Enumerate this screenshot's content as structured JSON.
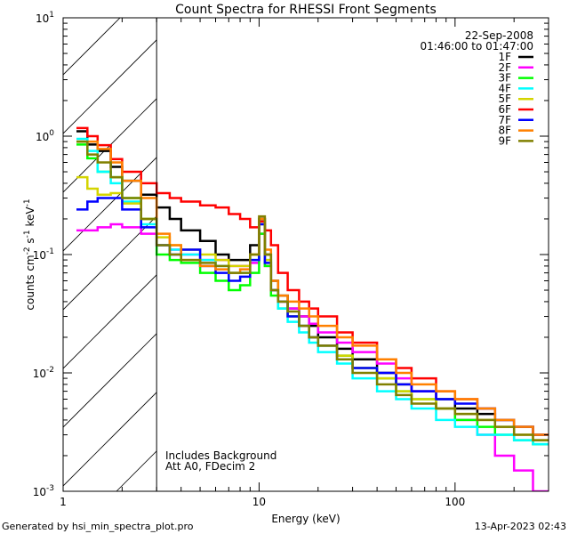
{
  "chart_data": {
    "type": "line",
    "title": "Count Spectra for RHESSI Front Segments",
    "xlabel": "Energy (keV)",
    "ylabel_parts": {
      "base": "counts cm",
      "exp1": "-2",
      "mid": " s",
      "exp2": "-1",
      "unit": " keV",
      "exp3": "-1"
    },
    "xscale": "log",
    "yscale": "log",
    "xlim": [
      1,
      300
    ],
    "ylim": [
      0.001,
      10
    ],
    "x_ticks": [
      {
        "value": 1,
        "label": "1"
      },
      {
        "value": 10,
        "label": "10"
      },
      {
        "value": 100,
        "label": "100"
      }
    ],
    "y_ticks": [
      {
        "value": 0.001,
        "base": "10",
        "exp": "-3"
      },
      {
        "value": 0.01,
        "base": "10",
        "exp": "-2"
      },
      {
        "value": 0.1,
        "base": "10",
        "exp": "-1"
      },
      {
        "value": 1,
        "base": "10",
        "exp": "0"
      },
      {
        "value": 10,
        "base": "10",
        "exp": "1"
      }
    ],
    "date": "22-Sep-2008",
    "time_range": "01:46:00 to 01:47:00",
    "shaded_region_keV": [
      1,
      3
    ],
    "annotations": [
      "Includes Background",
      "Att A0, FDecim 2"
    ],
    "legend_position": "top-right",
    "energy_edges": [
      1.17,
      1.33,
      1.5,
      1.75,
      2.0,
      2.5,
      3.0,
      3.5,
      4,
      5,
      6,
      7,
      8,
      9,
      10,
      10.7,
      11.5,
      12.5,
      14,
      16,
      18,
      20,
      25,
      30,
      40,
      50,
      60,
      80,
      100,
      130,
      160,
      200,
      250,
      300
    ],
    "series": [
      {
        "name": "1F",
        "color": "#000000",
        "values": [
          1.1,
          0.85,
          0.75,
          0.55,
          0.42,
          0.32,
          0.25,
          0.2,
          0.16,
          0.13,
          0.1,
          0.09,
          0.09,
          0.12,
          0.2,
          0.1,
          0.06,
          0.045,
          0.035,
          0.03,
          0.025,
          0.02,
          0.016,
          0.013,
          0.01,
          0.008,
          0.007,
          0.006,
          0.005,
          0.0045,
          0.004,
          0.0035,
          0.003
        ]
      },
      {
        "name": "2F",
        "color": "#ff00ff",
        "values": [
          0.16,
          0.16,
          0.17,
          0.18,
          0.17,
          0.15,
          0.12,
          0.11,
          0.1,
          0.09,
          0.09,
          0.08,
          0.08,
          0.085,
          0.15,
          0.08,
          0.05,
          0.04,
          0.035,
          0.03,
          0.026,
          0.022,
          0.018,
          0.015,
          0.012,
          0.009,
          0.007,
          0.005,
          0.004,
          0.003,
          0.002,
          0.0015,
          0.001
        ]
      },
      {
        "name": "3F",
        "color": "#00ff00",
        "values": [
          0.85,
          0.65,
          0.5,
          0.45,
          0.3,
          0.2,
          0.1,
          0.09,
          0.085,
          0.07,
          0.06,
          0.05,
          0.055,
          0.07,
          0.15,
          0.08,
          0.045,
          0.035,
          0.03,
          0.025,
          0.02,
          0.017,
          0.014,
          0.011,
          0.009,
          0.007,
          0.006,
          0.005,
          0.004,
          0.0035,
          0.003,
          0.0027,
          0.0025
        ]
      },
      {
        "name": "4F",
        "color": "#00ffff",
        "values": [
          0.95,
          0.75,
          0.5,
          0.4,
          0.28,
          0.18,
          0.12,
          0.11,
          0.1,
          0.09,
          0.08,
          0.07,
          0.07,
          0.09,
          0.19,
          0.09,
          0.05,
          0.035,
          0.027,
          0.022,
          0.018,
          0.015,
          0.012,
          0.009,
          0.007,
          0.006,
          0.005,
          0.004,
          0.0035,
          0.003,
          0.003,
          0.0027,
          0.0025
        ]
      },
      {
        "name": "5F",
        "color": "#d4d400",
        "values": [
          0.45,
          0.36,
          0.32,
          0.33,
          0.27,
          0.2,
          0.14,
          0.12,
          0.11,
          0.1,
          0.09,
          0.08,
          0.08,
          0.1,
          0.18,
          0.09,
          0.05,
          0.04,
          0.03,
          0.025,
          0.02,
          0.017,
          0.014,
          0.011,
          0.009,
          0.007,
          0.006,
          0.005,
          0.0045,
          0.004,
          0.0035,
          0.003,
          0.0027
        ]
      },
      {
        "name": "6F",
        "color": "#ff0000",
        "values": [
          1.17,
          1.0,
          0.84,
          0.64,
          0.5,
          0.4,
          0.33,
          0.3,
          0.28,
          0.26,
          0.25,
          0.22,
          0.2,
          0.17,
          0.19,
          0.16,
          0.12,
          0.07,
          0.05,
          0.04,
          0.035,
          0.03,
          0.022,
          0.018,
          0.013,
          0.011,
          0.009,
          0.007,
          0.006,
          0.005,
          0.004,
          0.0035,
          0.003
        ]
      },
      {
        "name": "7F",
        "color": "#0000ff",
        "values": [
          0.24,
          0.28,
          0.3,
          0.3,
          0.24,
          0.17,
          0.12,
          0.1,
          0.11,
          0.08,
          0.07,
          0.06,
          0.065,
          0.09,
          0.18,
          0.085,
          0.05,
          0.04,
          0.03,
          0.025,
          0.02,
          0.017,
          0.013,
          0.011,
          0.01,
          0.008,
          0.007,
          0.006,
          0.0055,
          0.005,
          0.004,
          0.0035,
          0.003
        ]
      },
      {
        "name": "8F",
        "color": "#ff8000",
        "values": [
          0.9,
          0.9,
          0.78,
          0.6,
          0.42,
          0.3,
          0.15,
          0.12,
          0.09,
          0.08,
          0.075,
          0.07,
          0.075,
          0.1,
          0.2,
          0.11,
          0.06,
          0.045,
          0.04,
          0.035,
          0.03,
          0.025,
          0.02,
          0.017,
          0.013,
          0.01,
          0.008,
          0.007,
          0.006,
          0.005,
          0.004,
          0.0035,
          0.003
        ]
      },
      {
        "name": "9F",
        "color": "#808000",
        "values": [
          0.9,
          0.7,
          0.6,
          0.45,
          0.3,
          0.2,
          0.12,
          0.1,
          0.09,
          0.085,
          0.08,
          0.07,
          0.07,
          0.1,
          0.21,
          0.1,
          0.05,
          0.04,
          0.033,
          0.025,
          0.02,
          0.017,
          0.013,
          0.01,
          0.008,
          0.0065,
          0.0055,
          0.005,
          0.0045,
          0.004,
          0.0035,
          0.003,
          0.0027
        ]
      }
    ]
  },
  "footer": {
    "generated_by": "Generated by hsi_min_spectra_plot.pro",
    "timestamp": "13-Apr-2023 02:43"
  }
}
